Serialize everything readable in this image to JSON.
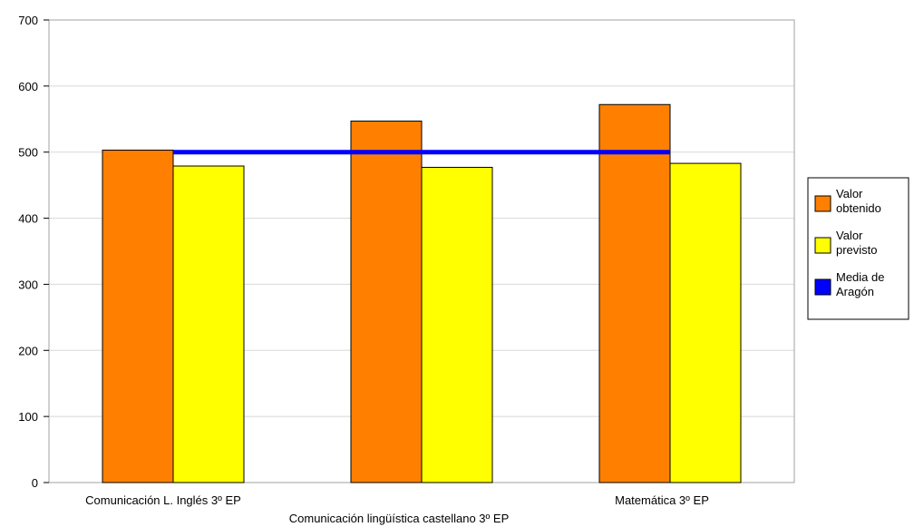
{
  "chart_data": {
    "type": "bar",
    "categories": [
      "Comunicación L. Inglés 3º EP",
      "Comunicación lingüística castellano 3º EP",
      "Matemática 3º EP"
    ],
    "series": [
      {
        "name": "Valor obtenido",
        "kind": "bar",
        "color": "#ff8000",
        "values": [
          503,
          547,
          572
        ]
      },
      {
        "name": "Valor previsto",
        "kind": "bar",
        "color": "#ffff00",
        "values": [
          479,
          477,
          483
        ]
      },
      {
        "name": "Media de Aragón",
        "kind": "line",
        "color": "#0000ff",
        "values": [
          500,
          500,
          500
        ]
      }
    ],
    "legend": [
      {
        "lines": [
          "Valor",
          "obtenido"
        ],
        "color": "#ff8000"
      },
      {
        "lines": [
          "Valor",
          "previsto"
        ],
        "color": "#ffff00"
      },
      {
        "lines": [
          "Media de",
          "Aragón"
        ],
        "color": "#0000ff"
      }
    ],
    "yticks": [
      0,
      100,
      200,
      300,
      400,
      500,
      600,
      700
    ],
    "ylim": [
      0,
      700
    ],
    "grid": true,
    "legend_position": "right"
  }
}
